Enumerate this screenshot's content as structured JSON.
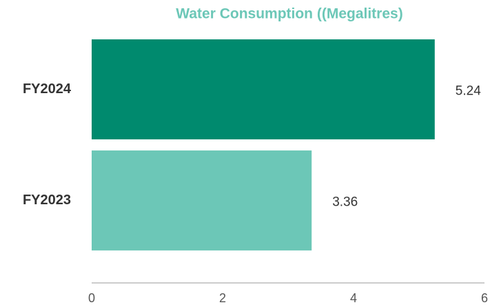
{
  "chart_data": {
    "type": "bar",
    "orientation": "horizontal",
    "title": "Water Consumption ((Megalitres)",
    "categories": [
      "FY2024",
      "FY2023"
    ],
    "values": [
      5.24,
      3.36
    ],
    "colors": [
      "#008a6e",
      "#6cc7b7"
    ],
    "xlim": [
      0,
      6
    ],
    "xticks": [
      0,
      2,
      4,
      6
    ],
    "grid": false,
    "data_labels": true
  }
}
